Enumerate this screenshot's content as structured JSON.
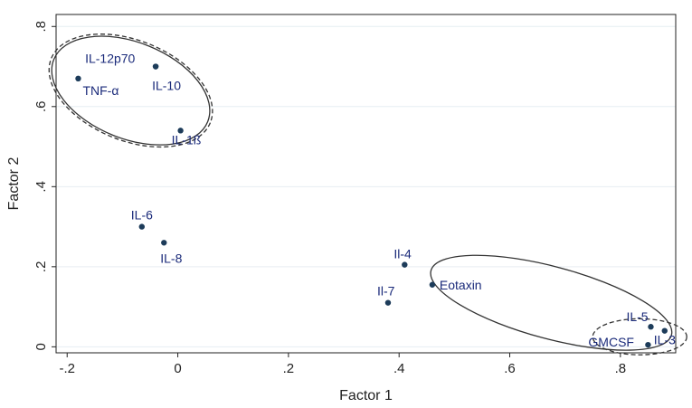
{
  "chart_data": {
    "type": "scatter",
    "xlabel": "Factor 1",
    "ylabel": "Factor 2",
    "xlim": [
      -0.22,
      0.9
    ],
    "ylim": [
      -0.015,
      0.83
    ],
    "x_ticks": [
      {
        "value": -0.2,
        "label": "-.2"
      },
      {
        "value": 0,
        "label": "0"
      },
      {
        "value": 0.2,
        "label": ".2"
      },
      {
        "value": 0.4,
        "label": ".4"
      },
      {
        "value": 0.6,
        "label": ".6"
      },
      {
        "value": 0.8,
        "label": ".8"
      }
    ],
    "y_ticks": [
      {
        "value": 0,
        "label": "0"
      },
      {
        "value": 0.2,
        "label": ".2"
      },
      {
        "value": 0.4,
        "label": ".4"
      },
      {
        "value": 0.6,
        "label": ".6"
      },
      {
        "value": 0.8,
        "label": ".8"
      }
    ],
    "grid": true,
    "colors": {
      "plot_background": "#ffffff",
      "grid": "#e6eef2",
      "point": "#1d3c5a",
      "label": "#1a2a7a"
    },
    "points": [
      {
        "label": "IL-12p70",
        "x": -0.04,
        "y": 0.7
      },
      {
        "label": "TNF-α",
        "x": -0.18,
        "y": 0.67
      },
      {
        "label": "IL-10",
        "x": -0.04,
        "y": 0.7
      },
      {
        "label": "IL-1ß",
        "x": 0.005,
        "y": 0.54
      },
      {
        "label": "IL-6",
        "x": -0.065,
        "y": 0.3
      },
      {
        "label": "IL-8",
        "x": -0.025,
        "y": 0.26
      },
      {
        "label": "Il-4",
        "x": 0.41,
        "y": 0.205
      },
      {
        "label": "Eotaxin",
        "x": 0.46,
        "y": 0.155
      },
      {
        "label": "Il-7",
        "x": 0.38,
        "y": 0.11
      },
      {
        "label": "IL-5",
        "x": 0.855,
        "y": 0.05
      },
      {
        "label": "IL-3",
        "x": 0.88,
        "y": 0.04
      },
      {
        "label": "GMCSF",
        "x": 0.85,
        "y": 0.005
      }
    ],
    "ellipses": [
      {
        "style": "solid",
        "cx": -0.085,
        "cy": 0.64,
        "rx": 0.15,
        "ry": 0.12
      },
      {
        "style": "dashed",
        "cx": -0.085,
        "cy": 0.64,
        "rx": 0.155,
        "ry": 0.125
      },
      {
        "style": "solid",
        "cx": 0.675,
        "cy": 0.11,
        "rx": 0.225,
        "ry": 0.09
      },
      {
        "style": "dashed",
        "cx": 0.835,
        "cy": 0.025,
        "rx": 0.085,
        "ry": 0.045
      }
    ]
  }
}
